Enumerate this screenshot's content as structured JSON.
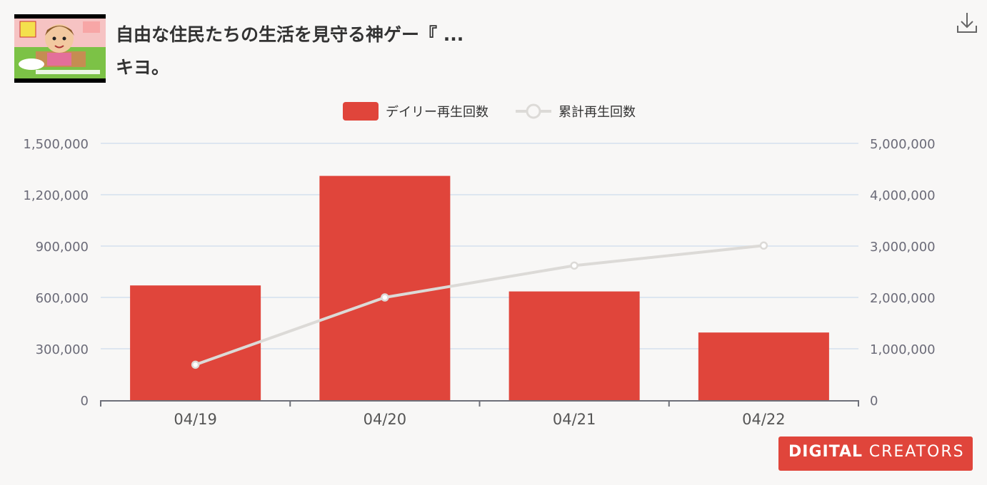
{
  "header": {
    "title_line1": "自由な住民たちの生活を見守る神ゲー『 ...",
    "title_line2": "キヨ。",
    "thumbnail_icon": "video-thumbnail-icon",
    "download_icon": "download-icon"
  },
  "legend": {
    "bar_label": "デイリー再生回数",
    "line_label": "累計再生回数"
  },
  "brand": {
    "logo_main": "DIGITAL",
    "logo_sub": "CREATORS"
  },
  "colors": {
    "bar": "#e0453b",
    "line": "#dcdad7",
    "grid": "#dde6f0",
    "axis_text": "#6b6b78",
    "brand": "#e0453b"
  },
  "chart_data": {
    "type": "bar",
    "categories": [
      "04/19",
      "04/20",
      "04/21",
      "04/22"
    ],
    "series": [
      {
        "name": "デイリー再生回数",
        "type": "bar",
        "axis": "left",
        "values": [
          670000,
          1310000,
          635000,
          395000
        ]
      },
      {
        "name": "累計再生回数",
        "type": "line",
        "axis": "right",
        "values": [
          690000,
          2000000,
          2620000,
          3010000
        ]
      }
    ],
    "y_left": {
      "ylim": [
        0,
        1500000
      ],
      "ticks": [
        "0",
        "300,000",
        "600,000",
        "900,000",
        "1,200,000",
        "1,500,000"
      ]
    },
    "y_right": {
      "ylim": [
        0,
        5000000
      ],
      "ticks": [
        "0",
        "1,000,000",
        "2,000,000",
        "3,000,000",
        "4,000,000",
        "5,000,000"
      ]
    },
    "grid": true,
    "legend_position": "top-center"
  }
}
